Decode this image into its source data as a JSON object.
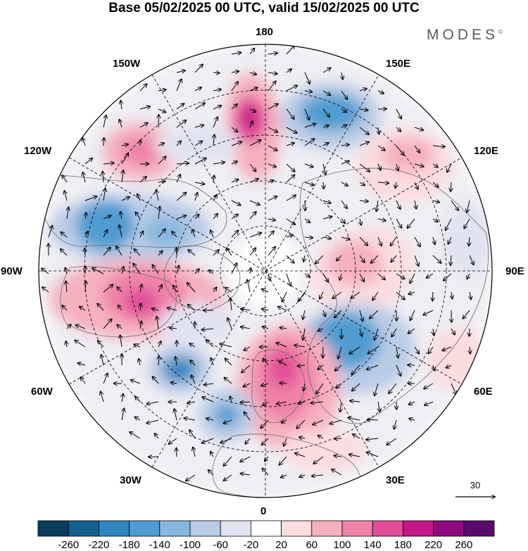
{
  "title": "Base 05/02/2025 00 UTC, valid 15/02/2025 00 UTC",
  "brand": {
    "name": "MODES",
    "mark": "©"
  },
  "map": {
    "projection": "north-polar-stereographic",
    "longitude_labels": {
      "top": "180",
      "bottom": "0",
      "left": "90W",
      "right": "90E",
      "upper_left_1": "150W",
      "upper_left_2": "120W",
      "upper_right_1": "150E",
      "upper_right_2": "120E",
      "lower_left_1": "60W",
      "lower_left_2": "30W",
      "lower_right_1": "60E",
      "lower_right_2": "30E"
    },
    "graticule": "dashed",
    "overlays": [
      "shaded anomaly field",
      "wind vectors",
      "coastlines"
    ]
  },
  "vector_reference": {
    "value": "30"
  },
  "colorbar": {
    "tick_labels": [
      "-260",
      "-220",
      "-180",
      "-140",
      "-100",
      "-60",
      "-20",
      "20",
      "60",
      "100",
      "140",
      "180",
      "220",
      "260"
    ],
    "colors": [
      "#0b3d5c",
      "#11628f",
      "#2e85c0",
      "#4f9cd1",
      "#87b7de",
      "#b9cce6",
      "#e2e3f1",
      "#ffffff",
      "#fbdcdf",
      "#f6b1bf",
      "#ef82a8",
      "#e14d96",
      "#c5178a",
      "#8f0a7f",
      "#5a0a6e"
    ]
  }
}
